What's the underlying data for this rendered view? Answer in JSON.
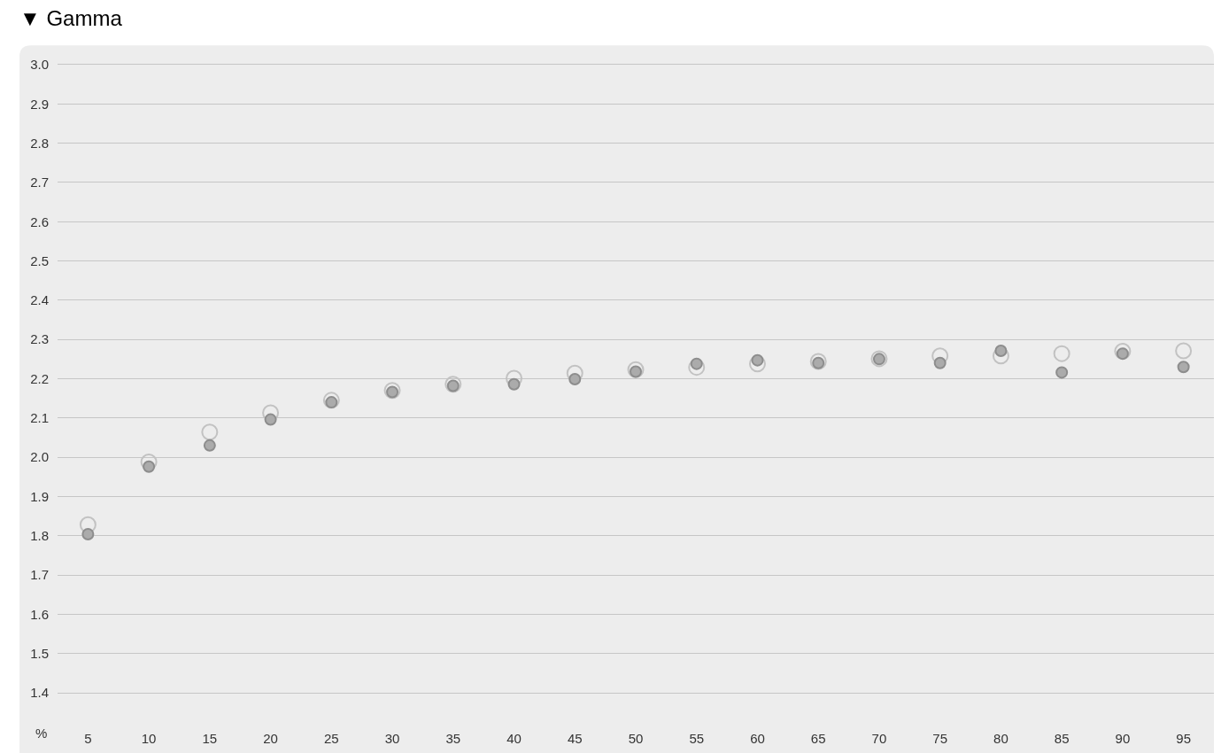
{
  "chart_data": {
    "type": "scatter",
    "title": "▼ Gamma",
    "xlabel": "%",
    "categories": [
      "5",
      "10",
      "15",
      "20",
      "25",
      "30",
      "35",
      "40",
      "45",
      "50",
      "55",
      "60",
      "65",
      "70",
      "75",
      "80",
      "85",
      "90",
      "95"
    ],
    "series": [
      {
        "color": "#c2c2c2",
        "values": [
          1.828,
          1.988,
          2.064,
          2.113,
          2.145,
          2.17,
          2.186,
          2.201,
          2.214,
          2.223,
          2.229,
          2.238,
          2.244,
          2.251,
          2.258,
          2.258,
          2.264,
          2.27,
          2.271
        ]
      },
      {
        "color": "#ababab",
        "values": [
          1.804,
          1.976,
          2.03,
          2.096,
          2.14,
          2.166,
          2.182,
          2.186,
          2.199,
          2.218,
          2.238,
          2.247,
          2.24,
          2.25,
          2.24,
          2.271,
          2.216,
          2.264,
          2.23
        ]
      }
    ],
    "ylim": [
      1.4,
      3.0
    ],
    "yticks": [
      1.4,
      1.5,
      1.6,
      1.7,
      1.8,
      1.9,
      {
        "value": 2.0,
        "label": "2.0"
      },
      2.1,
      2.2,
      2.3,
      2.4,
      2.5,
      2.6,
      2.7,
      2.8,
      2.9,
      {
        "value": 3.0,
        "label": "3.0"
      }
    ],
    "grid": "y",
    "marker": "circle"
  }
}
